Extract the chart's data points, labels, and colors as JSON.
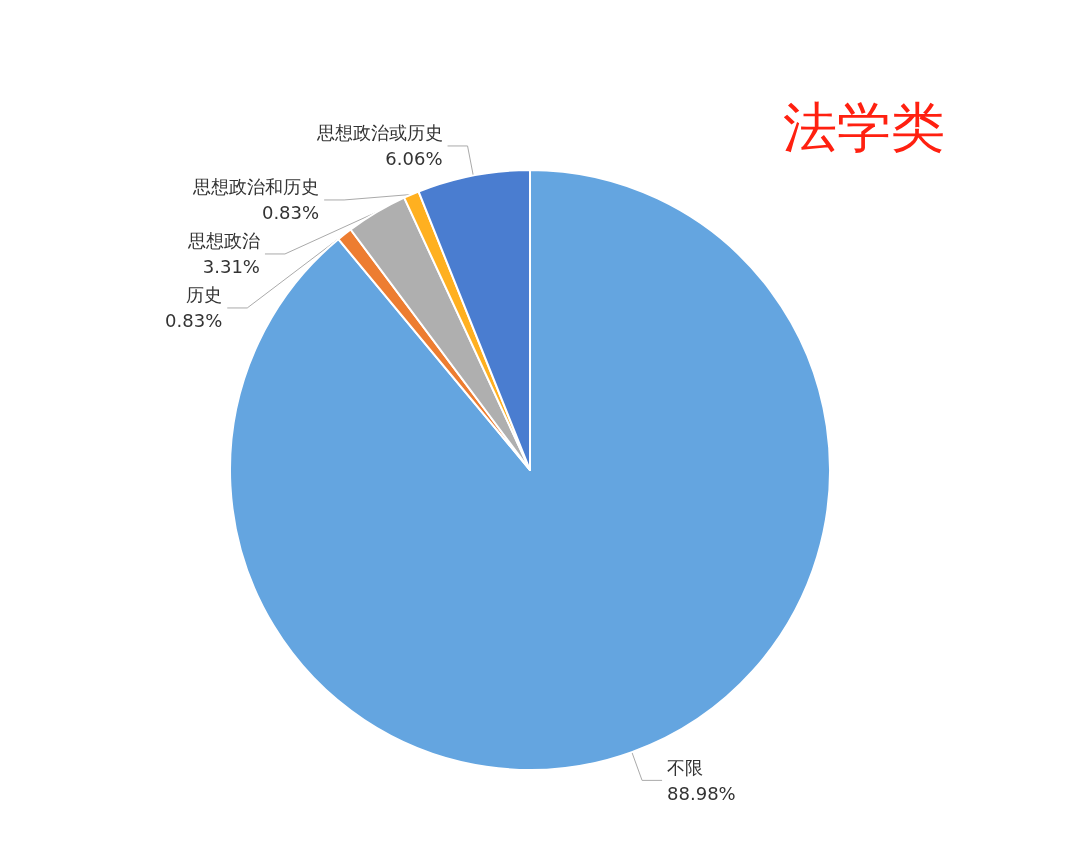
{
  "chart_data": {
    "type": "pie",
    "title": "法学类",
    "categories": [
      "不限",
      "历史",
      "思想政治",
      "思想政治和历史",
      "思想政治或历史"
    ],
    "values": [
      88.98,
      0.83,
      3.31,
      0.83,
      6.06
    ],
    "colors": [
      "#64a5e0",
      "#ed7d31",
      "#afafaf",
      "#ffb020",
      "#4a7dd0"
    ],
    "value_labels": [
      "88.98%",
      "0.83%",
      "3.31%",
      "0.83%",
      "6.06%"
    ],
    "legend": false
  }
}
